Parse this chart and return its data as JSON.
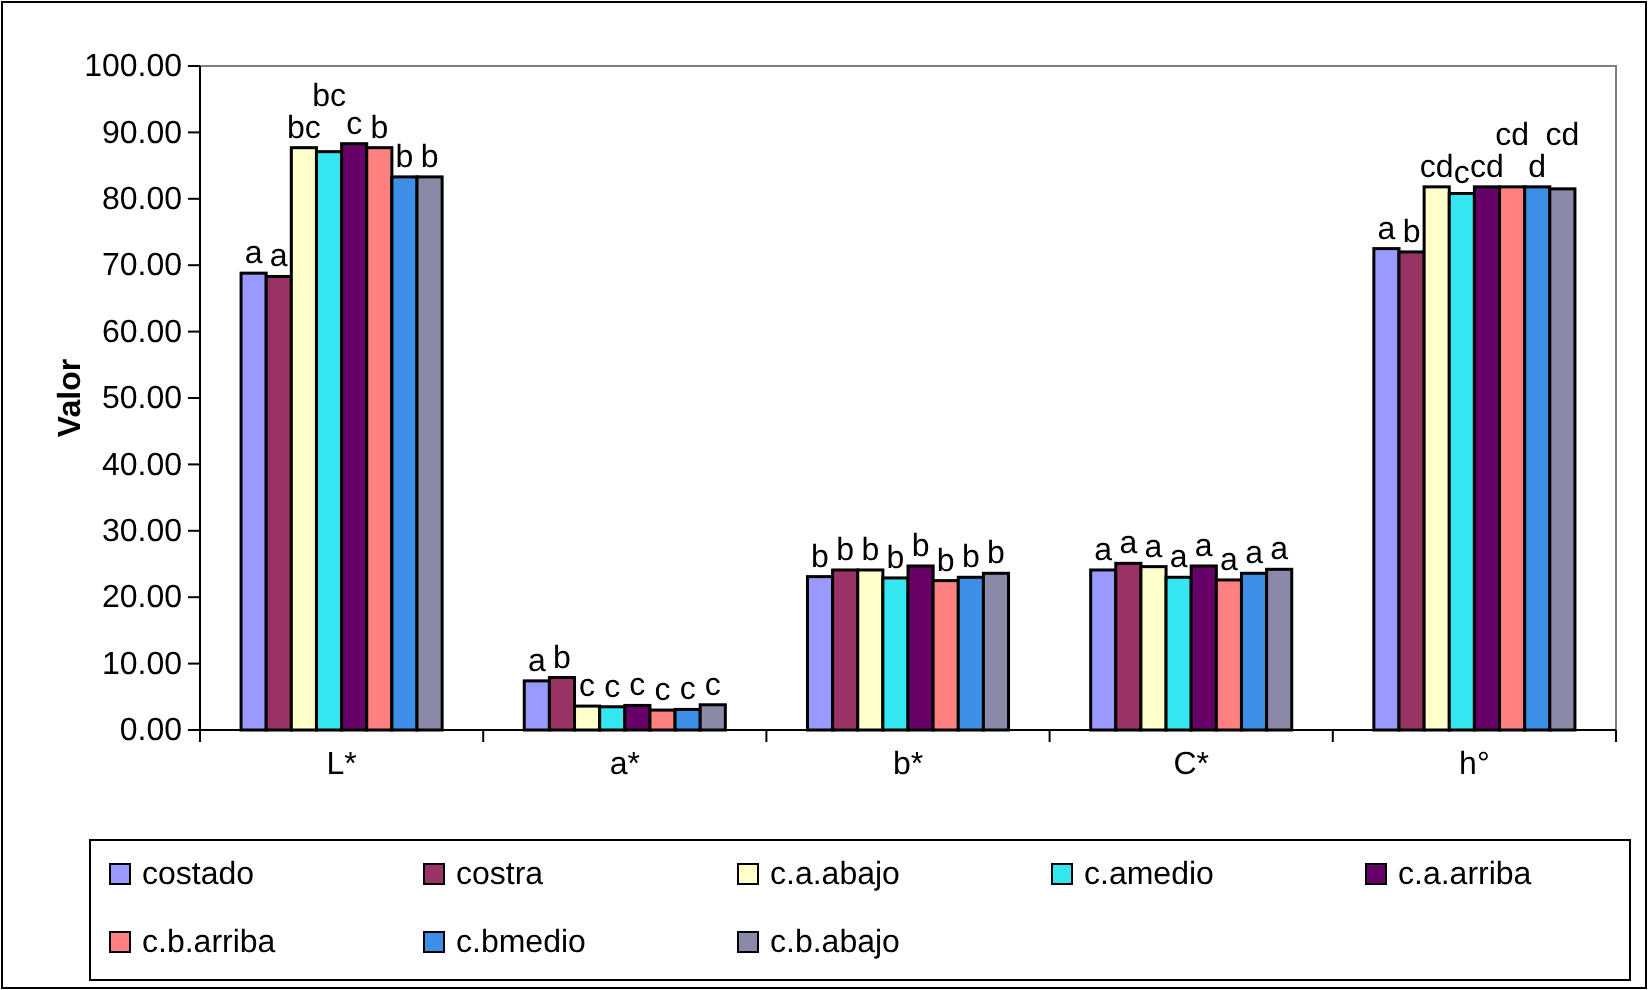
{
  "chart_data": {
    "type": "bar",
    "ylabel": "Valor",
    "categories": [
      "L*",
      "a*",
      "b*",
      "C*",
      "h°"
    ],
    "ylim": [
      0,
      100
    ],
    "yticks": [
      {
        "value": 0,
        "label": "0.00"
      },
      {
        "value": 10,
        "label": "10.00"
      },
      {
        "value": 20,
        "label": "20.00"
      },
      {
        "value": 30,
        "label": "30.00"
      },
      {
        "value": 40,
        "label": "40.00"
      },
      {
        "value": 50,
        "label": "50.00"
      },
      {
        "value": 60,
        "label": "60.00"
      },
      {
        "value": 70,
        "label": "70.00"
      },
      {
        "value": 80,
        "label": "80.00"
      },
      {
        "value": 90,
        "label": "90.00"
      },
      {
        "value": 100,
        "label": "100.00"
      }
    ],
    "grid": false,
    "legend": "bottom",
    "series": [
      {
        "name": "costado",
        "color": "#9999ff",
        "values": [
          68.8,
          7.4,
          23.1,
          24.1,
          72.5
        ],
        "value_labels": [
          "a",
          "a",
          "b",
          "a",
          "a"
        ]
      },
      {
        "name": "costra",
        "color": "#993366",
        "values": [
          68.3,
          7.9,
          24.1,
          25.1,
          72.0
        ],
        "value_labels": [
          "a",
          "b",
          "b",
          "a",
          "b"
        ]
      },
      {
        "name": "c.a.abajo",
        "color": "#ffffcc",
        "values": [
          87.7,
          3.6,
          24.1,
          24.6,
          81.8
        ],
        "value_labels": [
          "bc",
          "c",
          "b",
          "a",
          "cd"
        ]
      },
      {
        "name": "c.amedio",
        "color": "#33e6f0",
        "values": [
          87.1,
          3.5,
          22.9,
          23.0,
          80.8
        ],
        "value_labels": [
          "bc",
          "c",
          "b",
          "a",
          "c"
        ]
      },
      {
        "name": "c.a.arriba",
        "color": "#660066",
        "values": [
          88.3,
          3.7,
          24.7,
          24.7,
          81.8
        ],
        "value_labels": [
          "c",
          "c",
          "b",
          "a",
          "cd"
        ]
      },
      {
        "name": "c.b.arriba",
        "color": "#ff8080",
        "values": [
          87.7,
          3.0,
          22.5,
          22.6,
          81.8
        ],
        "value_labels": [
          "b",
          "c",
          "b",
          "a",
          "cd"
        ]
      },
      {
        "name": "c.bmedio",
        "color": "#3d8ee6",
        "values": [
          83.3,
          3.1,
          23.0,
          23.6,
          81.8
        ],
        "value_labels": [
          "b",
          "c",
          "b",
          "a",
          "d"
        ]
      },
      {
        "name": "c.b.abajo",
        "color": "#8a8aa8",
        "values": [
          83.3,
          3.8,
          23.6,
          24.2,
          81.5
        ],
        "value_labels": [
          "b",
          "c",
          "b",
          "a",
          "cd"
        ]
      }
    ]
  }
}
